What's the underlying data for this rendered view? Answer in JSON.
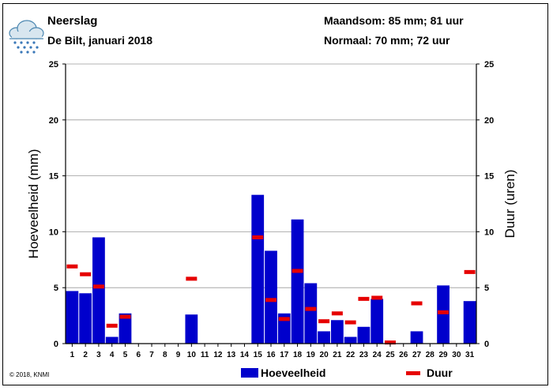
{
  "header": {
    "title": "Neerslag",
    "subtitle": "De Bilt, januari 2018",
    "month_sum": "Maandsom: 85 mm; 81 uur",
    "normal": "Normaal: 70 mm; 72 uur"
  },
  "footer": {
    "copyright": "© 2018, KNMI",
    "legend_amount": "Hoeveelheid",
    "legend_duration": "Duur"
  },
  "icon": "rain-cloud-icon",
  "colors": {
    "amount": "#0000cc",
    "duration": "#e60000",
    "grid": "#9a9a9a"
  },
  "chart_data": {
    "type": "bar",
    "ylabel": "Hoeveelheid (mm)",
    "y2label": "Duur (uren)",
    "ylim": [
      0,
      25
    ],
    "y2lim": [
      0,
      25
    ],
    "yticks": [
      0,
      5,
      10,
      15,
      20,
      25
    ],
    "grid": true,
    "categories": [
      "1",
      "2",
      "3",
      "4",
      "5",
      "6",
      "7",
      "8",
      "9",
      "10",
      "11",
      "12",
      "13",
      "14",
      "15",
      "16",
      "17",
      "18",
      "19",
      "20",
      "21",
      "22",
      "23",
      "24",
      "25",
      "26",
      "27",
      "28",
      "29",
      "30",
      "31"
    ],
    "series": [
      {
        "name": "Hoeveelheid",
        "kind": "bar",
        "values": [
          4.7,
          4.5,
          9.5,
          0.6,
          2.7,
          0,
          0,
          0,
          0,
          2.6,
          0,
          0,
          0,
          0,
          13.3,
          8.3,
          2.7,
          11.1,
          5.4,
          1.1,
          2.1,
          0.6,
          1.5,
          4.0,
          0,
          0,
          1.1,
          0,
          5.2,
          0,
          3.8
        ]
      },
      {
        "name": "Duur",
        "kind": "marker",
        "values": [
          6.9,
          6.2,
          5.1,
          1.6,
          2.4,
          null,
          null,
          null,
          null,
          5.8,
          null,
          null,
          null,
          null,
          9.5,
          3.9,
          2.2,
          6.5,
          3.1,
          2.0,
          2.7,
          1.9,
          4.0,
          4.1,
          0.1,
          null,
          3.6,
          null,
          2.8,
          null,
          6.4
        ]
      }
    ]
  }
}
